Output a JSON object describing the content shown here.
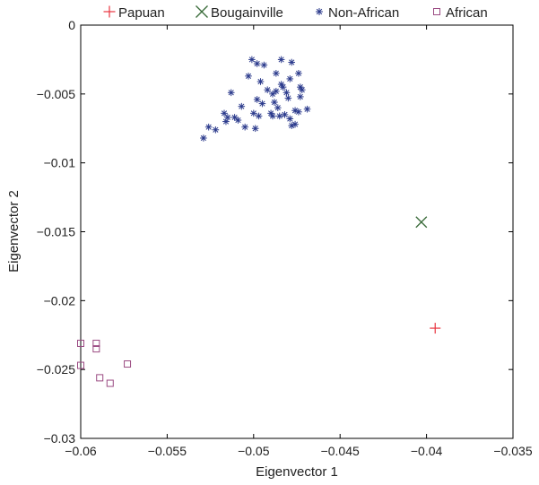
{
  "chart_data": {
    "type": "scatter",
    "title": "",
    "xlabel": "Eigenvector 1",
    "ylabel": "Eigenvector 2",
    "xlim": [
      -0.06,
      -0.035
    ],
    "ylim": [
      -0.03,
      0
    ],
    "xticks": [
      -0.06,
      -0.055,
      -0.05,
      -0.045,
      -0.04,
      -0.035
    ],
    "xtick_labels": [
      "−0.06",
      "−0.055",
      "−0.05",
      "−0.045",
      "−0.04",
      "−0.035"
    ],
    "yticks": [
      0,
      -0.005,
      -0.01,
      -0.015,
      -0.02,
      -0.025,
      -0.03
    ],
    "ytick_labels": [
      "0",
      "−0.005",
      "−0.01",
      "−0.015",
      "−0.02",
      "−0.025",
      "−0.03"
    ],
    "grid": false,
    "legend_position": "top-outside",
    "series": [
      {
        "name": "Papuan",
        "marker": "plus",
        "color": "#e8343f",
        "points": [
          [
            -0.0395,
            -0.022
          ]
        ]
      },
      {
        "name": "Bougainville",
        "marker": "cross",
        "color": "#3a6b3a",
        "points": [
          [
            -0.0403,
            -0.0143
          ]
        ]
      },
      {
        "name": "Non-African",
        "marker": "asterisk",
        "color": "#2b3a8c",
        "points": [
          [
            -0.0529,
            -0.0082
          ],
          [
            -0.0526,
            -0.0074
          ],
          [
            -0.0522,
            -0.0076
          ],
          [
            -0.0517,
            -0.0064
          ],
          [
            -0.0516,
            -0.007
          ],
          [
            -0.0515,
            -0.0067
          ],
          [
            -0.0513,
            -0.0049
          ],
          [
            -0.0511,
            -0.0067
          ],
          [
            -0.0507,
            -0.0059
          ],
          [
            -0.0505,
            -0.0074
          ],
          [
            -0.0503,
            -0.0037
          ],
          [
            -0.0501,
            -0.0025
          ],
          [
            -0.05,
            -0.0064
          ],
          [
            -0.0499,
            -0.0075
          ],
          [
            -0.0498,
            -0.0054
          ],
          [
            -0.0498,
            -0.0028
          ],
          [
            -0.0496,
            -0.0041
          ],
          [
            -0.0495,
            -0.0057
          ],
          [
            -0.0494,
            -0.0029
          ],
          [
            -0.0492,
            -0.0047
          ],
          [
            -0.049,
            -0.0064
          ],
          [
            -0.0489,
            -0.0066
          ],
          [
            -0.0488,
            -0.0056
          ],
          [
            -0.0487,
            -0.0035
          ],
          [
            -0.0487,
            -0.0048
          ],
          [
            -0.0486,
            -0.006
          ],
          [
            -0.0485,
            -0.0066
          ],
          [
            -0.0484,
            -0.0025
          ],
          [
            -0.0484,
            -0.0043
          ],
          [
            -0.0483,
            -0.0045
          ],
          [
            -0.0482,
            -0.0065
          ],
          [
            -0.0481,
            -0.0049
          ],
          [
            -0.048,
            -0.0053
          ],
          [
            -0.0479,
            -0.0039
          ],
          [
            -0.0479,
            -0.0068
          ],
          [
            -0.0478,
            -0.0073
          ],
          [
            -0.0476,
            -0.0062
          ],
          [
            -0.0474,
            -0.0035
          ],
          [
            -0.0473,
            -0.0045
          ],
          [
            -0.0472,
            -0.0047
          ],
          [
            -0.0473,
            -0.0052
          ],
          [
            -0.0474,
            -0.0063
          ],
          [
            -0.0478,
            -0.0027
          ],
          [
            -0.0469,
            -0.0061
          ],
          [
            -0.0476,
            -0.0072
          ],
          [
            -0.0489,
            -0.005
          ],
          [
            -0.0497,
            -0.0066
          ],
          [
            -0.0509,
            -0.0069
          ]
        ]
      },
      {
        "name": "African",
        "marker": "square",
        "color": "#9a4a82",
        "points": [
          [
            -0.06,
            -0.0231
          ],
          [
            -0.06,
            -0.0247
          ],
          [
            -0.0591,
            -0.0231
          ],
          [
            -0.0591,
            -0.0235
          ],
          [
            -0.0589,
            -0.0256
          ],
          [
            -0.0583,
            -0.026
          ],
          [
            -0.0573,
            -0.0246
          ]
        ]
      }
    ]
  }
}
